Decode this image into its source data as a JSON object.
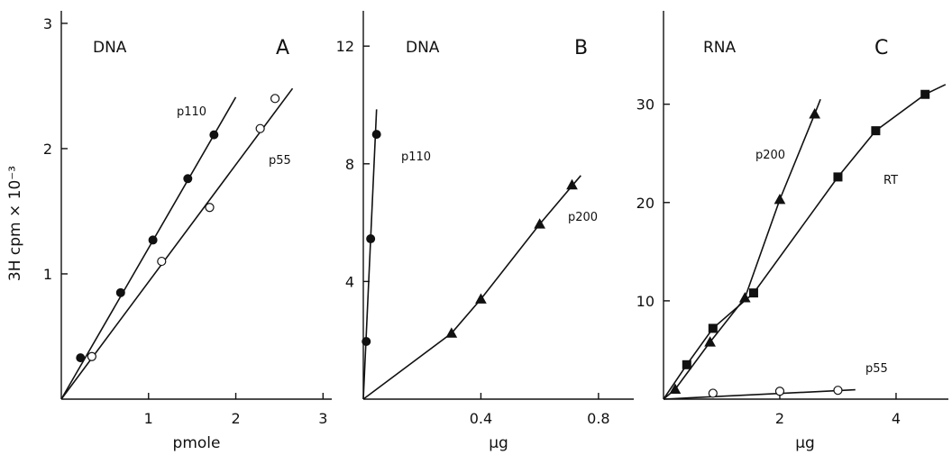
{
  "y_axis_label": "3H cpm × 10⁻³",
  "chart_data": [
    {
      "type": "scatter",
      "panel": "A",
      "title": "DNA",
      "xlabel": "pmole",
      "xlim": [
        0,
        3.1
      ],
      "ylim": [
        0,
        3.1
      ],
      "xticks": [
        1,
        2,
        3
      ],
      "yticks": [
        1,
        2,
        3
      ],
      "series": [
        {
          "name": "p110",
          "marker": "filled-circle",
          "points": [
            [
              0.22,
              0.33
            ],
            [
              0.68,
              0.85
            ],
            [
              1.05,
              1.27
            ],
            [
              1.45,
              1.76
            ],
            [
              1.75,
              2.11
            ]
          ],
          "fit": [
            [
              0,
              0
            ],
            [
              2.0,
              2.41
            ]
          ]
        },
        {
          "name": "p55",
          "marker": "open-circle",
          "points": [
            [
              0.35,
              0.34
            ],
            [
              1.15,
              1.1
            ],
            [
              1.7,
              1.53
            ],
            [
              2.28,
              2.16
            ],
            [
              2.45,
              2.4
            ]
          ],
          "fit": [
            [
              0,
              0
            ],
            [
              2.65,
              2.48
            ]
          ]
        }
      ]
    },
    {
      "type": "scatter",
      "panel": "B",
      "title": "DNA",
      "xlabel": "µg",
      "xlim": [
        0,
        0.92
      ],
      "ylim": [
        0,
        13.2
      ],
      "xticks": [
        0.4,
        0.8
      ],
      "yticks": [
        4,
        8,
        12
      ],
      "series": [
        {
          "name": "p110",
          "marker": "filled-circle",
          "points": [
            [
              0.01,
              1.96
            ],
            [
              0.025,
              5.45
            ],
            [
              0.045,
              9.0
            ]
          ],
          "fit": [
            [
              0,
              0
            ],
            [
              0.045,
              9.85
            ]
          ]
        },
        {
          "name": "p200",
          "marker": "filled-triangle",
          "points": [
            [
              0.3,
              2.24
            ],
            [
              0.4,
              3.4
            ],
            [
              0.6,
              5.95
            ],
            [
              0.71,
              7.28
            ]
          ],
          "fit": [
            [
              0,
              0
            ],
            [
              0.3,
              2.24
            ],
            [
              0.4,
              3.4
            ],
            [
              0.6,
              5.95
            ],
            [
              0.74,
              7.6
            ]
          ]
        }
      ]
    },
    {
      "type": "scatter",
      "panel": "C",
      "title": "RNA",
      "xlabel": "µg",
      "xlim": [
        0,
        4.9
      ],
      "ylim": [
        0,
        39.5
      ],
      "xticks": [
        2,
        4
      ],
      "yticks": [
        10,
        20,
        30
      ],
      "series": [
        {
          "name": "p200",
          "marker": "filled-triangle",
          "points": [
            [
              0.2,
              1.0
            ],
            [
              0.8,
              5.8
            ],
            [
              1.4,
              10.3
            ],
            [
              2.0,
              20.3
            ],
            [
              2.6,
              29.0
            ]
          ],
          "fit": [
            [
              0,
              0
            ],
            [
              0.2,
              1.0
            ],
            [
              0.8,
              5.8
            ],
            [
              1.4,
              10.3
            ],
            [
              2.0,
              20.3
            ],
            [
              2.6,
              29.0
            ],
            [
              2.7,
              30.5
            ]
          ]
        },
        {
          "name": "RT",
          "marker": "filled-square",
          "points": [
            [
              0.4,
              3.5
            ],
            [
              0.85,
              7.2
            ],
            [
              1.55,
              10.8
            ],
            [
              3.0,
              22.6
            ],
            [
              3.65,
              27.3
            ],
            [
              4.5,
              31.0
            ]
          ],
          "fit": [
            [
              0,
              0
            ],
            [
              0.4,
              3.5
            ],
            [
              0.85,
              7.2
            ],
            [
              1.55,
              10.8
            ],
            [
              3.0,
              22.6
            ],
            [
              3.65,
              27.3
            ],
            [
              4.5,
              31.0
            ],
            [
              4.85,
              32.0
            ]
          ]
        },
        {
          "name": "p55",
          "marker": "open-circle",
          "points": [
            [
              0.85,
              0.6
            ],
            [
              2.0,
              0.8
            ],
            [
              3.0,
              0.9
            ]
          ],
          "fit": [
            [
              0,
              0
            ],
            [
              3.3,
              0.95
            ]
          ]
        }
      ]
    }
  ]
}
